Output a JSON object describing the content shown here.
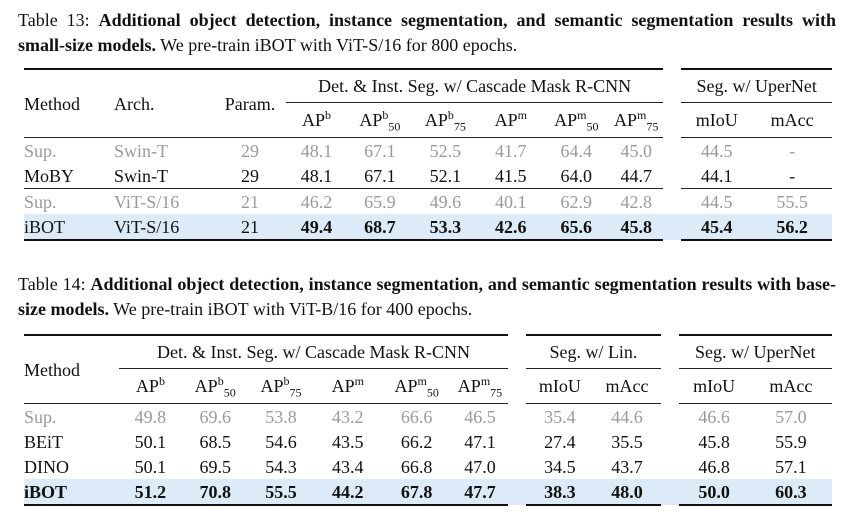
{
  "table13": {
    "caption_label": "Table 13:",
    "caption_bold": "Additional object detection, instance segmentation, and semantic segmentation results with small-size models.",
    "caption_rest": "We pre-train iBOT with ViT-S/16 for 800 epochs.",
    "headers": {
      "method": "Method",
      "arch": "Arch.",
      "param": "Param.",
      "group_det": "Det. & Inst. Seg. w/ Cascade Mask R-CNN",
      "group_seg": "Seg. w/ UperNet",
      "ap": "AP",
      "b": "b",
      "m": "m",
      "sub50": "50",
      "sub75": "75",
      "miou": "mIoU",
      "macc": "mAcc"
    },
    "rows": [
      {
        "method": "Sup.",
        "arch": "Swin-T",
        "param": "29",
        "apb": "48.1",
        "apb50": "67.1",
        "apb75": "52.5",
        "apm": "41.7",
        "apm50": "64.4",
        "apm75": "45.0",
        "miou": "44.5",
        "macc": "-"
      },
      {
        "method": "MoBY",
        "arch": "Swin-T",
        "param": "29",
        "apb": "48.1",
        "apb50": "67.1",
        "apb75": "52.1",
        "apm": "41.5",
        "apm50": "64.0",
        "apm75": "44.7",
        "miou": "44.1",
        "macc": "-"
      },
      {
        "method": "Sup.",
        "arch": "ViT-S/16",
        "param": "21",
        "apb": "46.2",
        "apb50": "65.9",
        "apb75": "49.6",
        "apm": "40.1",
        "apm50": "62.9",
        "apm75": "42.8",
        "miou": "44.5",
        "macc": "55.5"
      },
      {
        "method": "iBOT",
        "arch": "ViT-S/16",
        "param": "21",
        "apb": "49.4",
        "apb50": "68.7",
        "apb75": "53.3",
        "apm": "42.6",
        "apm50": "65.6",
        "apm75": "45.8",
        "miou": "45.4",
        "macc": "56.2"
      }
    ]
  },
  "table14": {
    "caption_label": "Table 14:",
    "caption_bold": "Additional object detection, instance segmentation, and semantic segmentation results with base-size models.",
    "caption_rest": "We pre-train iBOT with ViT-B/16 for 400 epochs.",
    "headers": {
      "method": "Method",
      "group_det": "Det. & Inst. Seg. w/ Cascade Mask R-CNN",
      "group_lin": "Seg. w/ Lin.",
      "group_seg": "Seg. w/ UperNet",
      "ap": "AP",
      "b": "b",
      "m": "m",
      "sub50": "50",
      "sub75": "75",
      "miou": "mIoU",
      "macc": "mAcc"
    },
    "rows": [
      {
        "method": "Sup.",
        "apb": "49.8",
        "apb50": "69.6",
        "apb75": "53.8",
        "apm": "43.2",
        "apm50": "66.6",
        "apm75": "46.5",
        "lmiou": "35.4",
        "lmacc": "44.6",
        "miou": "46.6",
        "macc": "57.0"
      },
      {
        "method": "BEiT",
        "apb": "50.1",
        "apb50": "68.5",
        "apb75": "54.6",
        "apm": "43.5",
        "apm50": "66.2",
        "apm75": "47.1",
        "lmiou": "27.4",
        "lmacc": "35.5",
        "miou": "45.8",
        "macc": "55.9"
      },
      {
        "method": "DINO",
        "apb": "50.1",
        "apb50": "69.5",
        "apb75": "54.3",
        "apm": "43.4",
        "apm50": "66.8",
        "apm75": "47.0",
        "lmiou": "34.5",
        "lmacc": "43.7",
        "miou": "46.8",
        "macc": "57.1"
      },
      {
        "method": "iBOT",
        "apb": "51.2",
        "apb50": "70.8",
        "apb75": "55.5",
        "apm": "44.2",
        "apm50": "67.8",
        "apm75": "47.7",
        "lmiou": "38.3",
        "lmacc": "48.0",
        "miou": "50.0",
        "macc": "60.3"
      }
    ]
  }
}
